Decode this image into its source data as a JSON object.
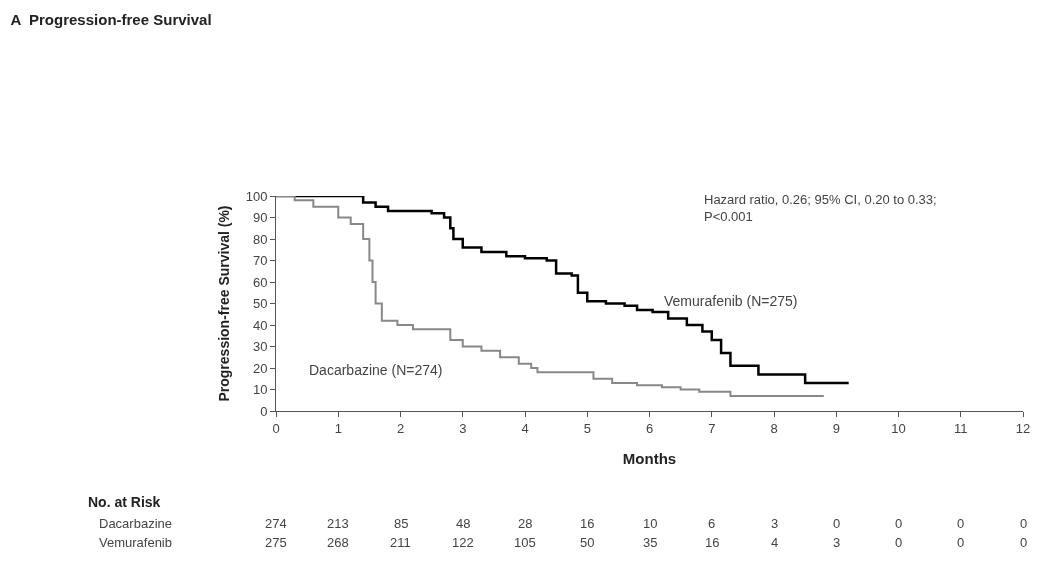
{
  "chart_data": {
    "type": "step",
    "title": "A  Progression-free Survival",
    "xlabel": "Months",
    "ylabel": "Progression-free Survival (%)",
    "xlim": [
      0,
      12
    ],
    "xticks": [
      0,
      1,
      2,
      3,
      4,
      5,
      6,
      7,
      8,
      9,
      10,
      11,
      12
    ],
    "ylim": [
      0,
      100
    ],
    "yticks": [
      0,
      10,
      20,
      30,
      40,
      50,
      60,
      70,
      80,
      90,
      100
    ],
    "line_style": "solid",
    "series": [
      {
        "name": "Vemurafenib (N=275)",
        "color": "#000000",
        "x": [
          0,
          1.25,
          1.4,
          1.6,
          1.8,
          2.5,
          2.7,
          2.8,
          2.85,
          3.0,
          3.3,
          3.7,
          4.0,
          4.35,
          4.5,
          4.75,
          4.85,
          5.0,
          5.3,
          5.6,
          5.8,
          6.05,
          6.3,
          6.6,
          6.85,
          7.0,
          7.15,
          7.3,
          7.75,
          8.5,
          9.2
        ],
        "values": [
          100,
          100,
          97,
          95,
          93,
          92,
          90,
          85,
          80,
          76,
          74,
          72,
          71,
          70,
          64,
          63,
          55,
          51,
          50,
          49,
          47,
          46,
          43,
          40,
          37,
          33,
          27,
          21,
          17,
          13,
          13
        ]
      },
      {
        "name": "Dacarbazine (N=274)",
        "color": "#888888",
        "x": [
          0,
          0.3,
          0.6,
          1.0,
          1.2,
          1.4,
          1.5,
          1.55,
          1.6,
          1.7,
          1.95,
          2.2,
          2.7,
          2.8,
          3.0,
          3.3,
          3.6,
          3.9,
          4.1,
          4.2,
          4.9,
          5.1,
          5.4,
          5.8,
          6.2,
          6.5,
          6.8,
          7.2,
          7.3,
          8.8
        ],
        "values": [
          100,
          98,
          95,
          90,
          87,
          80,
          70,
          60,
          50,
          42,
          40,
          38,
          38,
          33,
          30,
          28,
          25,
          22,
          20,
          18,
          18,
          15,
          13,
          12,
          11,
          10,
          9,
          9,
          7,
          7
        ]
      }
    ],
    "annotations": [
      "Hazard ratio, 0.26; 95% CI, 0.20 to 0.33;\nP<0.001",
      "No. at Risk",
      "Dacarbazine 274 213 85 48 28 16 10 6 3 0 0 0 0",
      "Vemurafenib 275 268 211 122 105 50 35 16 4 3 0 0 0"
    ]
  }
}
